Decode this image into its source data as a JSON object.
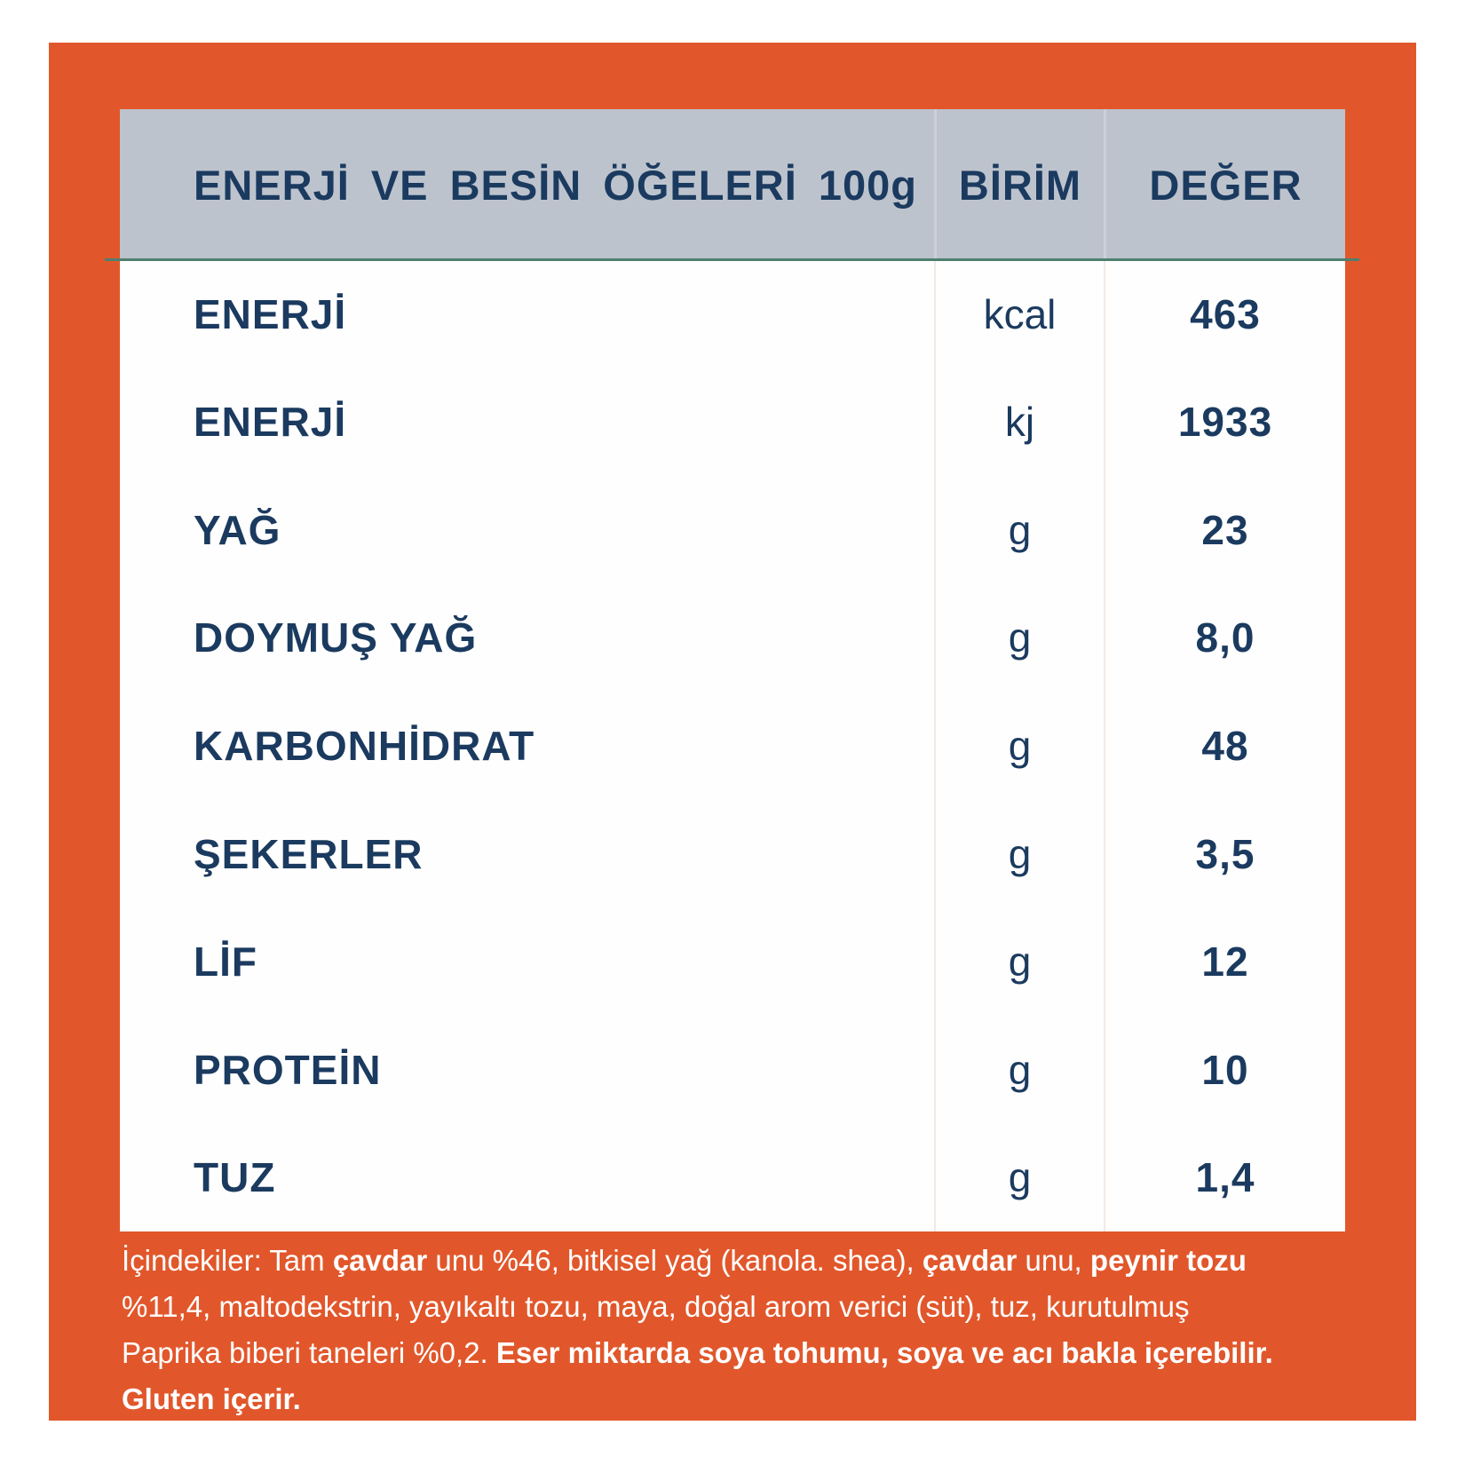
{
  "table": {
    "header": {
      "title": "ENERJİ VE BESİN ÖĞELERİ 100g",
      "unit": "BİRİM",
      "value": "DEĞER"
    },
    "rows": [
      {
        "label": "ENERJİ",
        "unit": "kcal",
        "value": "463"
      },
      {
        "label": "ENERJİ",
        "unit": "kj",
        "value": "1933"
      },
      {
        "label": "YAĞ",
        "unit": "g",
        "value": "23"
      },
      {
        "label": "DOYMUŞ YAĞ",
        "unit": "g",
        "value": "8,0"
      },
      {
        "label": "KARBONHİDRAT",
        "unit": "g",
        "value": "48"
      },
      {
        "label": "ŞEKERLER",
        "unit": "g",
        "value": "3,5"
      },
      {
        "label": "LİF",
        "unit": "g",
        "value": "12"
      },
      {
        "label": "PROTEİN",
        "unit": "g",
        "value": "10"
      },
      {
        "label": "TUZ",
        "unit": "g",
        "value": "1,4"
      }
    ]
  },
  "ingredients": {
    "lines": [
      {
        "seg0": "İçindekiler: Tam ",
        "seg1": "çavdar",
        "seg2": " unu %46, bitkisel yağ (kanola. shea), ",
        "seg3": "çavdar",
        "seg4": " unu, ",
        "seg5": "peynir tozu"
      },
      {
        "seg0": "%11,4, maltodekstrin, yayıkaltı tozu, maya, doğal arom verici (süt), tuz, kurutulmuş"
      },
      {
        "seg0": "Paprika biberi taneleri %0,2. ",
        "seg1": "Eser miktarda soya tohumu, soya ve acı bakla içerebilir."
      },
      {
        "seg0": "Gluten içerir."
      }
    ]
  },
  "colors": {
    "accent_orange": "#E1572B",
    "header_gray": "#BDC3CD",
    "text_navy": "#1B3A5F",
    "divider_teal": "#4E7F6E",
    "ingredients_text": "#FFFFFF"
  }
}
